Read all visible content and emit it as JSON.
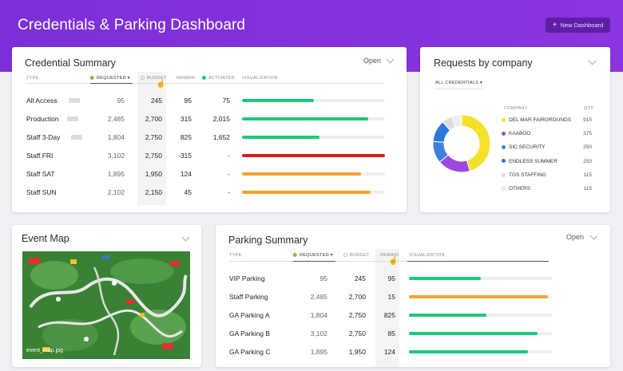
{
  "header": {
    "title": "Credentials & Parking Dashboard",
    "new_button": "New Dashboard"
  },
  "credential_summary": {
    "title": "Credential Summary",
    "filter": "Open",
    "columns": {
      "type": "TYPE",
      "requested": "REQUESTED",
      "budget": "BUDGET",
      "remain": "REMAIN",
      "activated": "ACTIVATED",
      "visualization": "VISUALIZATION"
    },
    "rows": [
      {
        "type": "All Access",
        "requested": "95",
        "budget": "245",
        "remain": "95",
        "activated": "75",
        "bar": 0.5,
        "bar_color": "#1ec87a"
      },
      {
        "type": "Production",
        "requested": "2,485",
        "budget": "2,700",
        "remain": "315",
        "activated": "2,015",
        "bar": 0.88,
        "bar_color": "#1ec87a"
      },
      {
        "type": "Staff 3-Day",
        "requested": "1,804",
        "budget": "2,750",
        "remain": "825",
        "activated": "1,652",
        "bar": 0.54,
        "bar_color": "#1ec87a"
      },
      {
        "type": "Staff FRI",
        "requested": "3,102",
        "budget": "2,750",
        "remain": "-315",
        "activated": "-",
        "bar": 1.0,
        "bar_color": "#d81e1e"
      },
      {
        "type": "Staff SAT",
        "requested": "1,895",
        "budget": "1,950",
        "remain": "124",
        "activated": "-",
        "bar": 0.83,
        "bar_color": "#f7a12c"
      },
      {
        "type": "Staff SUN",
        "requested": "2,102",
        "budget": "2,150",
        "remain": "45",
        "activated": "-",
        "bar": 0.9,
        "bar_color": "#f7a12c"
      }
    ]
  },
  "requests_by_company": {
    "title": "Requests by company",
    "filter": "ALL CREDENTIALS",
    "columns": {
      "company": "COMPANY",
      "qty": "QTY"
    },
    "items": [
      {
        "name": "DEL MAR FAIRGROUNDS",
        "qty": "915",
        "color": "#f5e12a"
      },
      {
        "name": "KAABOO",
        "qty": "375",
        "color": "#9b48e0"
      },
      {
        "name": "SIC SECURITY",
        "qty": "250",
        "color": "#3f7fe0"
      },
      {
        "name": "ENDLESS SUMMER",
        "qty": "250",
        "color": "#2b78d8"
      },
      {
        "name": "TGS STAFFING",
        "qty": "115",
        "color": "#dddddd"
      },
      {
        "name": "OTHERS",
        "qty": "115",
        "color": "#eeeeee"
      }
    ]
  },
  "event_map": {
    "title": "Event Map",
    "caption": "event_map.jpg"
  },
  "parking_summary": {
    "title": "Parking Summary",
    "filter": "Open",
    "columns": {
      "type": "TYPE",
      "requested": "REQUESTED",
      "budget": "BUDGET",
      "remain": "REMAIN",
      "visualization": "VISUALIZATION"
    },
    "rows": [
      {
        "type": "VIP Parking",
        "requested": "95",
        "budget": "245",
        "remain": "95",
        "bar": 0.5,
        "bar_color": "#1ec87a"
      },
      {
        "type": "Staff Parking",
        "requested": "2,485",
        "budget": "2,700",
        "remain": "15",
        "bar": 0.97,
        "bar_color": "#f7a12c"
      },
      {
        "type": "GA Parking A",
        "requested": "1,804",
        "budget": "2,750",
        "remain": "825",
        "bar": 0.54,
        "bar_color": "#1ec87a"
      },
      {
        "type": "GA Parking B",
        "requested": "3,102",
        "budget": "2,750",
        "remain": "85",
        "bar": 0.9,
        "bar_color": "#1ec87a"
      },
      {
        "type": "GA Parking C",
        "requested": "1,895",
        "budget": "1,950",
        "remain": "124",
        "bar": 0.83,
        "bar_color": "#1ec87a"
      }
    ]
  }
}
